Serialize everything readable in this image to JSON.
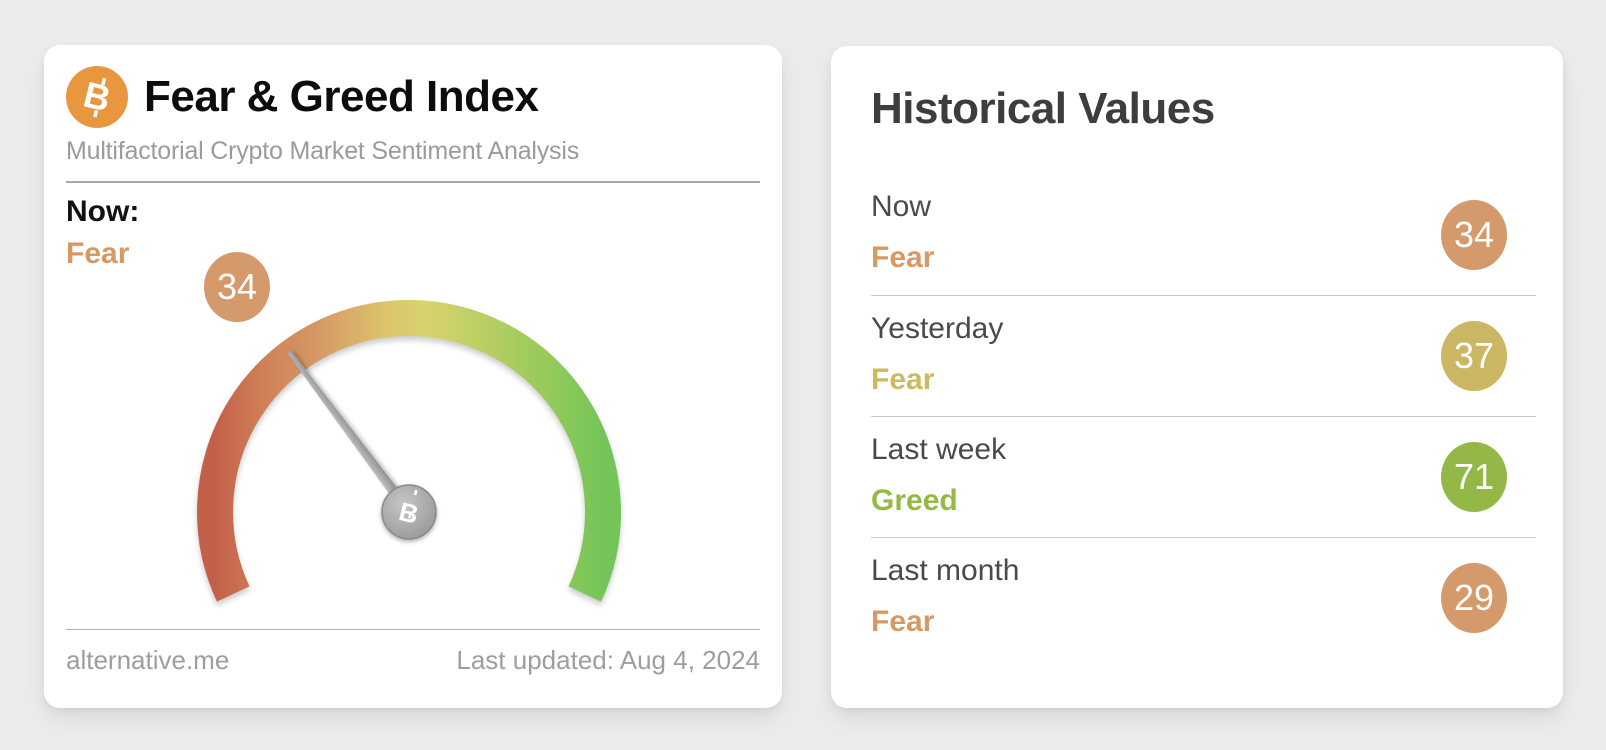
{
  "page": {
    "background": "#ececec"
  },
  "gauge_card": {
    "logo_icon": "bitcoin-icon",
    "title": "Fear & Greed Index",
    "subtitle": "Multifactorial Crypto Market Sentiment Analysis",
    "now_label": "Now:",
    "now_sentiment": "Fear",
    "now_value": "34",
    "now_color": "#d79964",
    "badge_color": "#d59a6b",
    "footer_source": "alternative.me",
    "footer_updated": "Last updated: Aug 4, 2024"
  },
  "historical_card": {
    "title": "Historical Values",
    "rows": [
      {
        "label": "Now",
        "sentiment": "Fear",
        "value": "34",
        "badge_color": "#d59a6b",
        "text_color": "#d79964"
      },
      {
        "label": "Yesterday",
        "sentiment": "Fear",
        "value": "37",
        "badge_color": "#cbb763",
        "text_color": "#cdb95e"
      },
      {
        "label": "Last week",
        "sentiment": "Greed",
        "value": "71",
        "badge_color": "#94b848",
        "text_color": "#94ba45"
      },
      {
        "label": "Last month",
        "sentiment": "Fear",
        "value": "29",
        "badge_color": "#d59a6b",
        "text_color": "#d79964"
      }
    ]
  },
  "chart_data": {
    "type": "gauge",
    "title": "Fear & Greed Index",
    "value": 34,
    "min": 0,
    "max": 100,
    "current_label": "Fear",
    "arc_sweep_degrees": 230,
    "color_scale": [
      "#c3604a",
      "#cf8157",
      "#d69c66",
      "#dcc46c",
      "#d9d36f",
      "#b7cf64",
      "#97ca5b",
      "#74c558"
    ],
    "historical": {
      "type": "table",
      "categories": [
        "Now",
        "Yesterday",
        "Last week",
        "Last month"
      ],
      "values": [
        34,
        37,
        71,
        29
      ],
      "labels": [
        "Fear",
        "Fear",
        "Greed",
        "Fear"
      ]
    }
  }
}
